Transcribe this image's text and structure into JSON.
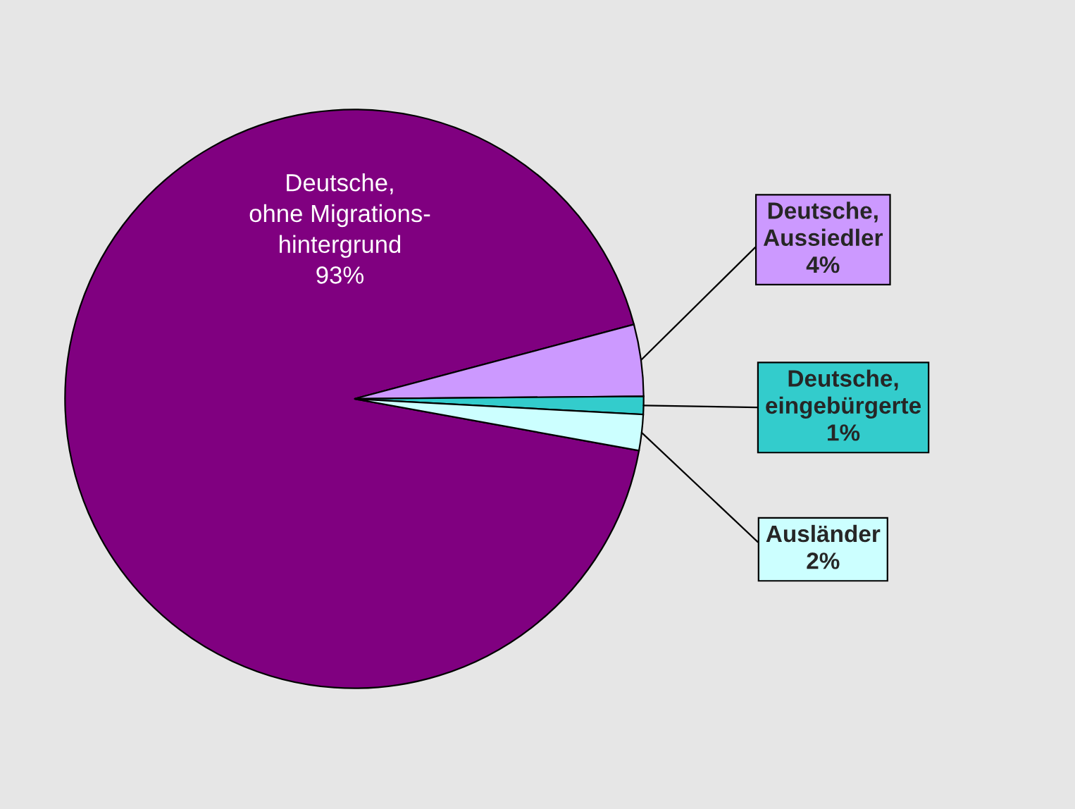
{
  "chart_data": {
    "type": "pie",
    "categories": [
      "Deutsche,\nohne Migrations-\nhintergrund",
      "Deutsche,\nAussiedler",
      "Deutsche,\neingebürgerte",
      "Ausländer"
    ],
    "values": [
      93,
      4,
      1,
      2
    ],
    "colors": [
      "#800080",
      "#cc99ff",
      "#33cccc",
      "#ccffff"
    ],
    "value_labels": [
      "93%",
      "4%",
      "1%",
      "2%"
    ],
    "legend": false
  }
}
